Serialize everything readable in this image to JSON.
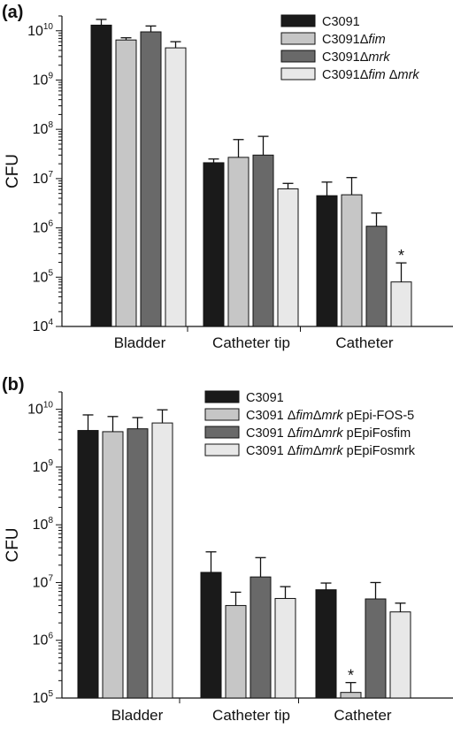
{
  "chart_data": [
    {
      "panel": "(a)",
      "type": "bar",
      "ylabel": "CFU",
      "yscale": "log",
      "ylim": [
        10000,
        20000000000
      ],
      "yticks": [
        10000,
        100000,
        1000000,
        10000000,
        100000000,
        1000000000,
        10000000000
      ],
      "ytick_labels": [
        {
          "base": "10",
          "exp": "4"
        },
        {
          "base": "10",
          "exp": "5"
        },
        {
          "base": "10",
          "exp": "6"
        },
        {
          "base": "10",
          "exp": "7"
        },
        {
          "base": "10",
          "exp": "8"
        },
        {
          "base": "10",
          "exp": "9"
        },
        {
          "base": "10",
          "exp": "10"
        }
      ],
      "categories": [
        "Bladder",
        "Catheter tip",
        "Catheter"
      ],
      "legend_position": "top-right",
      "series": [
        {
          "name": "C3091",
          "name_parts": [
            {
              "t": "C3091",
              "i": false
            }
          ],
          "color": "#1a1a1a",
          "values": [
            13000000000,
            21000000,
            4500000
          ],
          "errors": [
            17000000000,
            25000000,
            8500000
          ]
        },
        {
          "name": "C3091Δfim",
          "name_parts": [
            {
              "t": "C3091Δ",
              "i": false
            },
            {
              "t": "fim",
              "i": true
            }
          ],
          "color": "#c6c6c6",
          "values": [
            6500000000,
            27000000,
            4700000
          ],
          "errors": [
            7200000000,
            62000000,
            10500000
          ]
        },
        {
          "name": "C3091Δmrk",
          "name_parts": [
            {
              "t": "C3091Δ",
              "i": false
            },
            {
              "t": "mrk",
              "i": true
            }
          ],
          "color": "#696969",
          "values": [
            9500000000,
            30000000,
            1080000
          ],
          "errors": [
            12500000000,
            72000000,
            2000000
          ]
        },
        {
          "name": "C3091Δfim Δmrk",
          "name_parts": [
            {
              "t": "C3091Δ",
              "i": false
            },
            {
              "t": "fim",
              "i": true
            },
            {
              "t": " Δ",
              "i": false
            },
            {
              "t": "mrk",
              "i": true
            }
          ],
          "color": "#e8e8e8",
          "values": [
            4500000000,
            6200000,
            80000
          ],
          "errors": [
            6000000000,
            8000000,
            195000
          ]
        }
      ],
      "annotations": [
        {
          "text": "*",
          "series": 3,
          "category": 2
        }
      ]
    },
    {
      "panel": "(b)",
      "type": "bar",
      "ylabel": "CFU",
      "yscale": "log",
      "ylim": [
        100000,
        20000000000
      ],
      "yticks": [
        100000,
        1000000,
        10000000,
        100000000,
        1000000000,
        10000000000
      ],
      "ytick_labels": [
        {
          "base": "10",
          "exp": "5"
        },
        {
          "base": "10",
          "exp": "6"
        },
        {
          "base": "10",
          "exp": "7"
        },
        {
          "base": "10",
          "exp": "8"
        },
        {
          "base": "10",
          "exp": "9"
        },
        {
          "base": "10",
          "exp": "10"
        }
      ],
      "categories": [
        "Bladder",
        "Catheter tip",
        "Catheter"
      ],
      "legend_position": "top-right",
      "series": [
        {
          "name": "C3091",
          "name_parts": [
            {
              "t": "C3091",
              "i": false
            }
          ],
          "color": "#1a1a1a",
          "values": [
            4300000000,
            15000000,
            7500000
          ],
          "errors": [
            8000000000,
            34000000,
            9800000
          ]
        },
        {
          "name": "C3091 ΔfimΔmrk pEpi-FOS-5",
          "name_parts": [
            {
              "t": "C3091 Δ",
              "i": false
            },
            {
              "t": "fim",
              "i": true
            },
            {
              "t": "Δ",
              "i": false
            },
            {
              "t": "mrk",
              "i": true
            },
            {
              "t": " pEpi-FOS-5",
              "i": false
            }
          ],
          "color": "#c6c6c6",
          "values": [
            4100000000,
            4000000,
            125000
          ],
          "errors": [
            7500000000,
            6800000,
            185000
          ]
        },
        {
          "name": "C3091 ΔfimΔmrk pEpiFosfim",
          "name_parts": [
            {
              "t": "C3091 Δ",
              "i": false
            },
            {
              "t": "fim",
              "i": true
            },
            {
              "t": "Δ",
              "i": false
            },
            {
              "t": "mrk",
              "i": true
            },
            {
              "t": " pEpiFosfim",
              "i": false
            }
          ],
          "color": "#696969",
          "values": [
            4600000000,
            12500000,
            5200000
          ],
          "errors": [
            7200000000,
            27000000,
            10000000
          ]
        },
        {
          "name": "C3091 ΔfimΔmrk pEpiFosmrk",
          "name_parts": [
            {
              "t": "C3091 Δ",
              "i": false
            },
            {
              "t": "fim",
              "i": true
            },
            {
              "t": "Δ",
              "i": false
            },
            {
              "t": "mrk",
              "i": true
            },
            {
              "t": " pEpiFosmrk",
              "i": false
            }
          ],
          "color": "#e8e8e8",
          "values": [
            5800000000,
            5300000,
            3100000
          ],
          "errors": [
            9800000000,
            8500000,
            4400000
          ]
        }
      ],
      "annotations": [
        {
          "text": "*",
          "series": 1,
          "category": 2
        }
      ]
    }
  ]
}
